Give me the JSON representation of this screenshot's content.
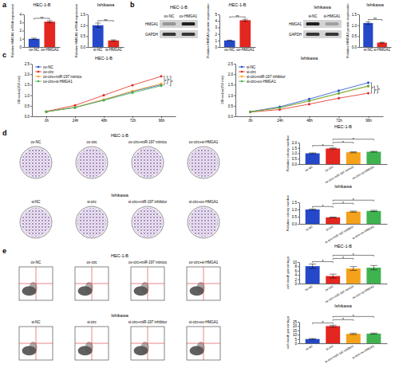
{
  "chart_data": [
    {
      "type": "bar",
      "title": "HEC-1-B",
      "ylabel": "Relative HMGA1 mRNA expression",
      "categories": [
        "ov-NC",
        "ov-HMGA1"
      ],
      "values": [
        1.0,
        3.1
      ],
      "errors": [
        0.08,
        0.12
      ],
      "colors": [
        "#2448c9",
        "#e3261f"
      ],
      "ylim": [
        0,
        4
      ],
      "yticks": [
        0,
        1,
        2,
        3,
        4
      ],
      "annotations": [
        {
          "text": "**",
          "from": 0,
          "to": 1
        }
      ]
    },
    {
      "type": "bar",
      "title": "Ishikawa",
      "ylabel": "Relative HMGA1 mRNA expression",
      "categories": [
        "si-NC",
        "si-HMGA1"
      ],
      "values": [
        1.0,
        0.3
      ],
      "errors": [
        0.1,
        0.03
      ],
      "colors": [
        "#2448c9",
        "#e3261f"
      ],
      "ylim": [
        0,
        1.5
      ],
      "yticks": [
        {
          "value": 0,
          "label": "0.0"
        },
        0.5,
        {
          "value": 1,
          "label": "1.0"
        },
        1.5
      ],
      "annotations": [
        {
          "text": "**",
          "from": 0,
          "to": 1
        }
      ]
    },
    {
      "type": "bar",
      "title": "HEC-1-B",
      "ylabel": "Relative HMGA1 protein expression",
      "categories": [
        "ov-NC",
        "ov-HMGA1"
      ],
      "values": [
        1.0,
        4.1
      ],
      "errors": [
        0.05,
        0.15
      ],
      "colors": [
        "#2448c9",
        "#e3261f"
      ],
      "ylim": [
        0,
        5
      ],
      "yticks": [
        0,
        1,
        2,
        3,
        4,
        5
      ],
      "annotations": [
        {
          "text": "**",
          "from": 0,
          "to": 1
        }
      ]
    },
    {
      "type": "bar",
      "title": "Ishikawa",
      "ylabel": "Relative HMGA1 protein expression",
      "categories": [
        "si-NC",
        "si-HMGA1"
      ],
      "values": [
        1.1,
        0.2
      ],
      "errors": [
        0.05,
        0.02
      ],
      "colors": [
        "#2448c9",
        "#e3261f"
      ],
      "ylim": [
        0,
        1.5
      ],
      "yticks": [
        {
          "value": 0,
          "label": "0.0"
        },
        0.5,
        {
          "value": 1,
          "label": "1.0"
        },
        1.5
      ],
      "annotations": [
        {
          "text": "**",
          "from": 0,
          "to": 1
        }
      ]
    },
    {
      "type": "line",
      "title": "HEC-1-B",
      "ylabel": "OD value(450 nm)",
      "categories": [
        "0h",
        "24h",
        "48h",
        "72h",
        "96h"
      ],
      "series": [
        {
          "name": "ov-NC",
          "color": "#2448c9",
          "values": [
            0.22,
            0.42,
            0.78,
            1.18,
            1.5
          ]
        },
        {
          "name": "ov-circ",
          "color": "#e3261f",
          "values": [
            0.23,
            0.52,
            1.0,
            1.48,
            1.9
          ]
        },
        {
          "name": "ov-circ+miR-197 mimics",
          "color": "#f4a21b",
          "values": [
            0.22,
            0.43,
            0.8,
            1.2,
            1.55
          ]
        },
        {
          "name": "ov-circ+si-HMGA1",
          "color": "#3fb34f",
          "values": [
            0.22,
            0.42,
            0.76,
            1.12,
            1.45
          ]
        }
      ],
      "ylim": [
        0,
        2.5
      ],
      "yticks": [
        {
          "value": 0,
          "label": "0.0"
        },
        0.5,
        {
          "value": 1,
          "label": "1.0"
        },
        1.5,
        {
          "value": 2,
          "label": "2.0"
        },
        2.5
      ],
      "legend": "upper left",
      "marker": "circle",
      "annotations": [
        {
          "text": "*",
          "from": 0,
          "to": 1
        },
        {
          "text": "*",
          "from": 1,
          "to": 2
        },
        {
          "text": "*",
          "from": 1,
          "to": 3
        }
      ]
    },
    {
      "type": "line",
      "title": "Ishikawa",
      "ylabel": "OD value(450 nm)",
      "categories": [
        "0h",
        "24h",
        "48h",
        "72h",
        "96h"
      ],
      "series": [
        {
          "name": "si-NC",
          "color": "#2448c9",
          "values": [
            0.22,
            0.45,
            0.82,
            1.22,
            1.6
          ]
        },
        {
          "name": "si-circ",
          "color": "#e3261f",
          "values": [
            0.2,
            0.32,
            0.58,
            0.86,
            1.1
          ]
        },
        {
          "name": "si-circ+miR-197 inhibitor",
          "color": "#f4a21b",
          "values": [
            0.21,
            0.4,
            0.72,
            1.08,
            1.42
          ]
        },
        {
          "name": "si-circ+ov-HMGA1",
          "color": "#3fb34f",
          "values": [
            0.21,
            0.41,
            0.74,
            1.1,
            1.45
          ]
        }
      ],
      "ylim": [
        0,
        2.5
      ],
      "yticks": [
        {
          "value": 0,
          "label": "0.0"
        },
        0.5,
        {
          "value": 1,
          "label": "1.0"
        },
        1.5,
        {
          "value": 2,
          "label": "2.0"
        },
        2.5
      ],
      "legend": "upper left",
      "marker": "circle",
      "annotations": [
        {
          "text": "*",
          "from": 0,
          "to": 1
        },
        {
          "text": "*",
          "from": 1,
          "to": 2
        },
        {
          "text": "*",
          "from": 1,
          "to": 3
        }
      ]
    },
    {
      "type": "bar",
      "title": "HEC-1-B",
      "ylabel": "Relative colony number",
      "categories": [
        "ov-NC",
        "ov-circ",
        "ov-circ+miR-197 mimics",
        "ov-circ+si-HMGA1"
      ],
      "values": [
        1.0,
        1.45,
        1.1,
        1.15
      ],
      "errors": [
        0.04,
        0.05,
        0.05,
        0.04
      ],
      "colors": [
        "#2448c9",
        "#e3261f",
        "#f4a21b",
        "#3fb34f"
      ],
      "ylim": [
        0,
        2
      ],
      "yticks": [
        {
          "value": 0,
          "label": "0.0"
        },
        0.5,
        {
          "value": 1,
          "label": "1.0"
        },
        1.5,
        {
          "value": 2,
          "label": "2.0"
        }
      ],
      "annotations": [
        {
          "text": "*",
          "from": 0,
          "to": 1
        },
        {
          "text": "*",
          "from": 1,
          "to": 2
        },
        {
          "text": "*",
          "from": 1,
          "to": 3
        }
      ]
    },
    {
      "type": "bar",
      "title": "Ishikawa",
      "ylabel": "Relative colony number",
      "categories": [
        "si-NC",
        "si-circ",
        "si-circ+miR-197 inhibitor",
        "si-circ+ov-HMGA1"
      ],
      "values": [
        1.0,
        0.45,
        0.85,
        0.9
      ],
      "errors": [
        0.04,
        0.03,
        0.04,
        0.04
      ],
      "colors": [
        "#2448c9",
        "#e3261f",
        "#f4a21b",
        "#3fb34f"
      ],
      "ylim": [
        0,
        1.5
      ],
      "yticks": [
        {
          "value": 0,
          "label": "0.0"
        },
        0.5,
        {
          "value": 1,
          "label": "1.0"
        },
        1.5
      ],
      "annotations": [
        {
          "text": "*",
          "from": 0,
          "to": 1
        },
        {
          "text": "*",
          "from": 1,
          "to": 2
        },
        {
          "text": "*",
          "from": 1,
          "to": 3
        }
      ]
    },
    {
      "type": "bar",
      "title": "HEC-1-B",
      "ylabel": "cell death percentage",
      "categories": [
        "ov-NC",
        "ov-circ",
        "ov-circ+miR-197 mimics",
        "ov-circ+si-HMGA1"
      ],
      "values": [
        8.1,
        3.5,
        7.0,
        7.4
      ],
      "errors": [
        1.0,
        0.9,
        0.9,
        1.0
      ],
      "colors": [
        "#2448c9",
        "#e3261f",
        "#f4a21b",
        "#3fb34f"
      ],
      "ylim": [
        0,
        10
      ],
      "yticks": [
        0,
        2,
        4,
        6,
        8,
        10
      ],
      "annotations": [
        {
          "text": "*",
          "from": 0,
          "to": 1
        },
        {
          "text": "*",
          "from": 1,
          "to": 2
        },
        {
          "text": "*",
          "from": 1,
          "to": 3
        }
      ]
    },
    {
      "type": "bar",
      "title": "Ishikawa",
      "ylabel": "cell death percentage",
      "categories": [
        "si-NC",
        "si-circ",
        "si-circ+miR-197 inhibitor",
        "si-circ+ov-HMGA1"
      ],
      "values": [
        5.0,
        20.0,
        11.0,
        11.3
      ],
      "errors": [
        0.5,
        1.0,
        0.8,
        0.6
      ],
      "colors": [
        "#2448c9",
        "#e3261f",
        "#f4a21b",
        "#3fb34f"
      ],
      "ylim": [
        0,
        25
      ],
      "yticks": [
        0,
        5,
        10,
        15,
        20,
        25
      ],
      "annotations": [
        {
          "text": "*",
          "from": 0,
          "to": 1
        },
        {
          "text": "*",
          "from": 1,
          "to": 2
        },
        {
          "text": "*",
          "from": 1,
          "to": 3
        }
      ]
    }
  ],
  "figure": {
    "panel_labels": [
      "a",
      "b",
      "c",
      "d",
      "e"
    ],
    "blots": [
      {
        "cell": "HEC-1-B",
        "lanes": [
          "ov-NC",
          "ov-HMGA1"
        ],
        "rows": [
          "HMGA1",
          "GAPDH"
        ]
      },
      {
        "cell": "Ishikawa",
        "lanes": [
          "si-NC",
          "si-HMGA1"
        ],
        "rows": [
          "HMGA1",
          "GAPDH"
        ]
      }
    ],
    "colony_images": [
      {
        "cell": "HEC-1-B",
        "conditions": [
          "ov-NC",
          "ov-circ",
          "ov-circ+miR-197 mimics",
          "ov-circ+si-HMGA1"
        ]
      },
      {
        "cell": "Ishikawa",
        "conditions": [
          "si-NC",
          "si-circ",
          "si-circ+miR-197 inhibitor",
          "si-circ+ov-HMGA1"
        ]
      }
    ],
    "flow_images": [
      {
        "cell": "HEC-1-B",
        "conditions": [
          "ov-NC",
          "ov-circ",
          "ov-circ+miR-197 mimics",
          "ov-circ+si-HMGA1"
        ]
      },
      {
        "cell": "Ishikawa",
        "conditions": [
          "si-NC",
          "si-circ",
          "si-circ+miR-197 inhibitor",
          "si-circ+ov-HMGA1"
        ]
      }
    ]
  }
}
